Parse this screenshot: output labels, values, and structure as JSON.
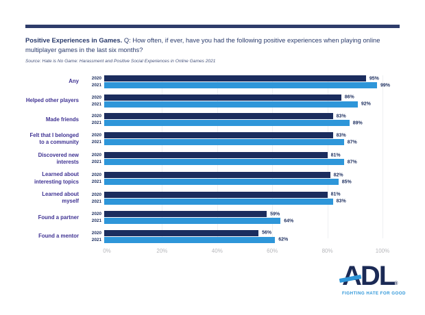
{
  "header": {
    "title_bold": "Positive Experiences in Games.",
    "title_rest": " Q: How often, if ever, have you had the following positive experiences when playing online multiplayer games in the last six months?",
    "source": "Source: Hate is No Game: Harassment and Positive Social Experiences in Online Games 2021"
  },
  "chart_data": {
    "type": "bar",
    "orientation": "horizontal",
    "title": "Positive Experiences in Games",
    "categories": [
      "Any",
      "Helped other players",
      "Made friends",
      "Felt that I belonged to a community",
      "Discovered new interests",
      "Learned about interesting topics",
      "Learned about myself",
      "Found a partner",
      "Found a mentor"
    ],
    "categories_display": [
      "Any",
      "Helped other players",
      "Made friends",
      "Felt that I belonged\nto a community",
      "Discovered new\ninterests",
      "Learned about\ninteresting topics",
      "Learned about myself",
      "Found a partner",
      "Found a mentor"
    ],
    "series": [
      {
        "name": "2020",
        "color": "#1b2d5e",
        "values": [
          95,
          86,
          83,
          83,
          81,
          82,
          81,
          59,
          56
        ]
      },
      {
        "name": "2021",
        "color": "#2e96d9",
        "values": [
          99,
          92,
          89,
          87,
          87,
          85,
          83,
          64,
          62
        ]
      }
    ],
    "value_suffix": "%",
    "xlim": [
      0,
      100
    ],
    "x_ticks": [
      "0%",
      "20%",
      "40%",
      "60%",
      "80%",
      "100%"
    ],
    "grid": "vertical-faint",
    "legend_position": "inline-row-labels"
  },
  "footer": {
    "logo_text": "ADL",
    "logo_registered": "®",
    "tagline": "FIGHTING HATE FOR GOOD"
  },
  "colors": {
    "bar_2020": "#1b2d5e",
    "bar_2021": "#2e96d9",
    "category_label": "#3e3192",
    "title_text": "#28396a",
    "axis_tick": "#b5b6ba",
    "top_rule": "#2e3c6a",
    "logo_navy": "#1b2a55",
    "logo_blue": "#2e96d9"
  }
}
